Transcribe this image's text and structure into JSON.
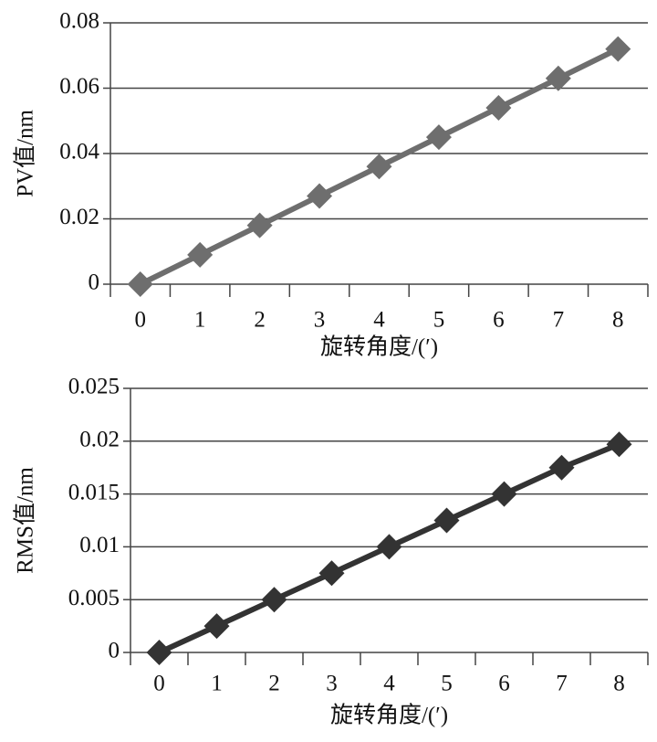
{
  "chart_data": [
    {
      "type": "line",
      "y_label": "PV值/nm",
      "x_label": "旋转角度/(′)",
      "categories": [
        "0",
        "1",
        "2",
        "3",
        "4",
        "5",
        "6",
        "7",
        "8"
      ],
      "values": [
        0,
        0.009,
        0.018,
        0.027,
        0.036,
        0.045,
        0.054,
        0.063,
        0.072
      ],
      "color": "#6e6e6e",
      "ylim": [
        0,
        0.08
      ],
      "yticks": [
        0,
        0.02,
        0.04,
        0.06,
        0.08
      ],
      "grid": true
    },
    {
      "type": "line",
      "y_label": "RMS值/nm",
      "x_label": "旋转角度/(′)",
      "categories": [
        "0",
        "1",
        "2",
        "3",
        "4",
        "5",
        "6",
        "7",
        "8"
      ],
      "values": [
        0,
        0.0025,
        0.005,
        0.0075,
        0.01,
        0.0125,
        0.015,
        0.0175,
        0.0197
      ],
      "color": "#333333",
      "ylim": [
        0,
        0.025
      ],
      "yticks": [
        0,
        0.005,
        0.01,
        0.015,
        0.02,
        0.025
      ],
      "grid": true
    }
  ]
}
